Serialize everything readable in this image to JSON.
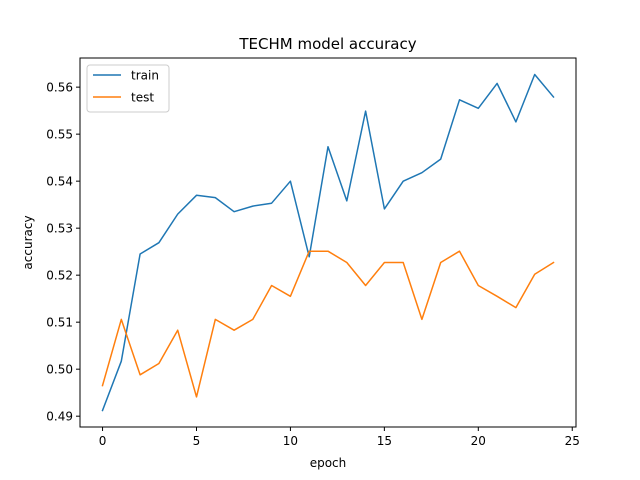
{
  "chart_data": {
    "type": "line",
    "title": "TECHM model accuracy",
    "xlabel": "epoch",
    "ylabel": "accuracy",
    "x": [
      0,
      1,
      2,
      3,
      4,
      5,
      6,
      7,
      8,
      9,
      10,
      11,
      12,
      13,
      14,
      15,
      16,
      17,
      18,
      19,
      20,
      21,
      22,
      23,
      24
    ],
    "xlim": [
      -1.2,
      25.2
    ],
    "ylim": [
      0.4877,
      0.5662
    ],
    "xticks": [
      0,
      5,
      10,
      15,
      20,
      25
    ],
    "yticks": [
      0.49,
      0.5,
      0.51,
      0.52,
      0.53,
      0.54,
      0.55,
      0.56
    ],
    "xtick_labels": [
      "0",
      "5",
      "10",
      "15",
      "20",
      "25"
    ],
    "ytick_labels": [
      "0.49",
      "0.50",
      "0.51",
      "0.52",
      "0.53",
      "0.54",
      "0.55",
      "0.56"
    ],
    "grid": false,
    "legend": "top-left",
    "series": [
      {
        "name": "train",
        "color": "#1f77b4",
        "values": [
          0.4912,
          0.5017,
          0.5245,
          0.5269,
          0.533,
          0.537,
          0.5365,
          0.5335,
          0.5347,
          0.5353,
          0.54,
          0.5239,
          0.5473,
          0.5358,
          0.5549,
          0.5341,
          0.54,
          0.5418,
          0.5447,
          0.5573,
          0.5555,
          0.5608,
          0.5526,
          0.5627,
          0.5579
        ]
      },
      {
        "name": "test",
        "color": "#ff7f0e",
        "values": [
          0.4965,
          0.5106,
          0.4988,
          0.5012,
          0.5083,
          0.4941,
          0.5106,
          0.5083,
          0.5106,
          0.5178,
          0.5155,
          0.5251,
          0.5251,
          0.5227,
          0.5178,
          0.5227,
          0.5227,
          0.5106,
          0.5227,
          0.5251,
          0.5178,
          0.5155,
          0.5131,
          0.5202,
          0.5227
        ]
      }
    ]
  }
}
